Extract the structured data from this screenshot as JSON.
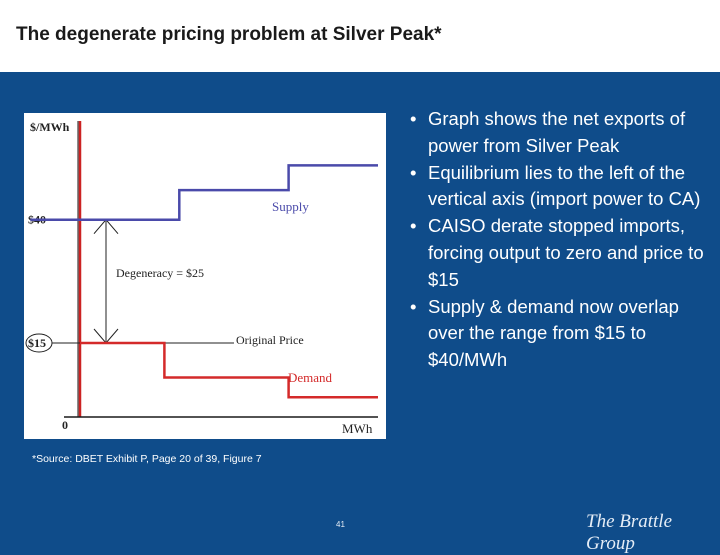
{
  "slide": {
    "title": "The degenerate pricing problem at Silver Peak*",
    "bullets": [
      "Graph shows the net exports of power from Silver Peak",
      "Equilibrium lies to the left of the vertical axis (import power to CA)",
      "CAISO derate stopped imports, forcing output to zero and price to $15",
      "Supply & demand now overlap over the range from $15 to $40/MWh"
    ],
    "source": "*Source: DBET Exhibit P, Page 20 of 39, Figure 7",
    "page_number": "41",
    "logo": "The Brattle Group"
  },
  "colors": {
    "background": "#0f4c8a",
    "supply": "#4a4aaa",
    "demand": "#d42a2a",
    "axis": "#cc2222"
  },
  "chart_data": {
    "type": "line",
    "ylabel": "$/MWh",
    "xlabel": "MWh",
    "origin_label": "0",
    "y_ticks": [
      {
        "label": "$40",
        "value": 40
      },
      {
        "label": "$15",
        "value": 15,
        "circled": true
      }
    ],
    "series": [
      {
        "name": "Supply",
        "step_points": [
          [
            -10,
            40
          ],
          [
            20,
            40
          ],
          [
            20,
            46
          ],
          [
            42,
            46
          ],
          [
            42,
            51
          ],
          [
            60,
            51
          ]
        ]
      },
      {
        "name": "Demand",
        "step_points": [
          [
            0,
            15
          ],
          [
            17,
            15
          ],
          [
            17,
            8
          ],
          [
            42,
            8
          ],
          [
            42,
            4
          ],
          [
            60,
            4
          ]
        ]
      }
    ],
    "annotations": {
      "original_price_label": "Original Price",
      "original_price_value": 15,
      "degeneracy_label": "Degeneracy = $25",
      "degeneracy_range": [
        15,
        40
      ]
    },
    "ylim": [
      0,
      60
    ],
    "xlim": [
      -10,
      60
    ],
    "grid": false
  }
}
